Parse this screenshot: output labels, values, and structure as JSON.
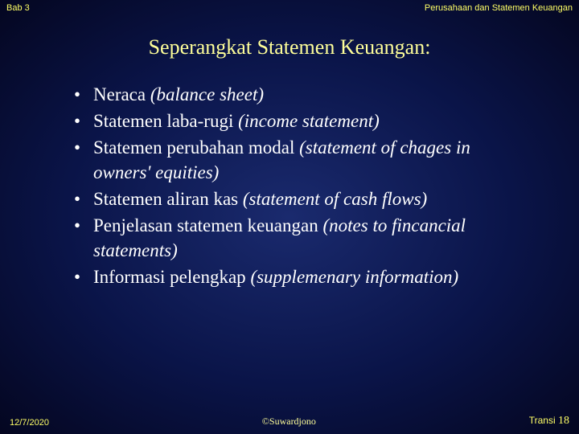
{
  "header": {
    "left": "Bab 3",
    "right": "Perusahaan dan Statemen Keuangan"
  },
  "title": "Seperangkat Statemen Keuangan:",
  "bullets": [
    {
      "plain": "Neraca ",
      "italic": "(balance sheet)"
    },
    {
      "plain": "Statemen laba-rugi ",
      "italic": "(income statement)"
    },
    {
      "plain": "Statemen perubahan modal ",
      "italic": "(statement of chages in owners' equities)"
    },
    {
      "plain": "Statemen aliran kas ",
      "italic": "(statement of cash flows)"
    },
    {
      "plain": "Penjelasan statemen keuangan ",
      "italic": "(notes to fincancial statements)"
    },
    {
      "plain": "Informasi pelengkap ",
      "italic": "(supplemenary information)"
    }
  ],
  "footer": {
    "date": "12/7/2020",
    "copyright": "©Suwardjono",
    "page_label": "Transi ",
    "page_number": "18"
  },
  "styling": {
    "slide_width": 720,
    "slide_height": 540,
    "background_gradient": {
      "center": "#1a2a6e",
      "mid": "#0a1448",
      "edge": "#040620"
    },
    "title_color": "#ffff99",
    "title_fontsize": 26,
    "header_color": "#ffff66",
    "header_fontsize": 11,
    "body_color": "#ffffff",
    "body_fontsize": 23,
    "footer_color": "#ffff66",
    "font_family_serif": "Times New Roman",
    "font_family_sans": "Arial"
  }
}
